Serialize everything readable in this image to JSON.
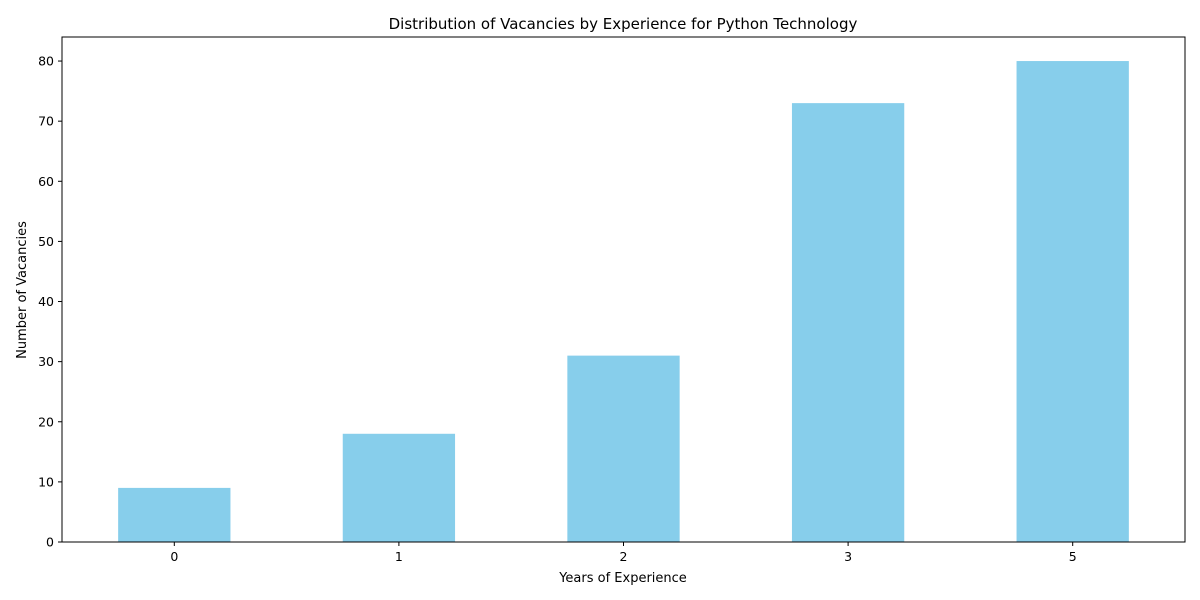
{
  "chart_data": {
    "type": "bar",
    "title": "Distribution of Vacancies by Experience for Python Technology",
    "xlabel": "Years of Experience",
    "ylabel": "Number of Vacancies",
    "categories": [
      "0",
      "1",
      "2",
      "3",
      "5"
    ],
    "values": [
      9,
      18,
      31,
      73,
      80
    ],
    "ylim": [
      0,
      84
    ],
    "yticks": [
      0,
      10,
      20,
      30,
      40,
      50,
      60,
      70,
      80
    ],
    "grid": false,
    "legend": "none",
    "bar_color": "#87CEEB"
  }
}
